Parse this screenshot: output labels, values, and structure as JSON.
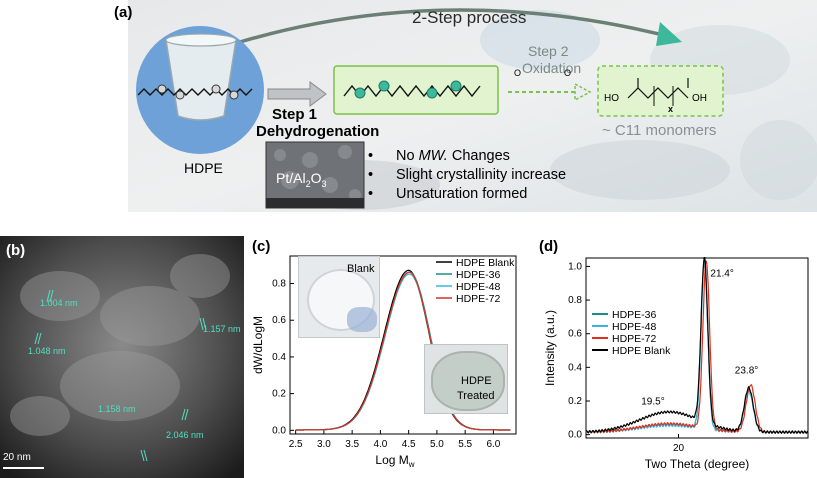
{
  "panel_a": {
    "label": "(a)",
    "process_label": "2-Step process",
    "step2_label": "Step 2",
    "oxidation_label": "Oxidation",
    "step1_label": "Step 1",
    "dehydrogenation_label": "Dehydrogenation",
    "hdpe_label": "HDPE",
    "catalyst_label_prefix": "Pt/Al",
    "catalyst_sub1": "2",
    "catalyst_mid": "O",
    "catalyst_sub2": "3",
    "monomer_label": "~ C11 monomers",
    "molecule_ho": "HO",
    "molecule_oh": "OH",
    "molecule_o1": "O",
    "molecule_o2": "O",
    "molecule_x": "x",
    "bullets": [
      {
        "prefix": "No ",
        "italic": "MW.",
        "suffix": " Changes"
      },
      {
        "text": "Slight crystallinity increase"
      },
      {
        "text": "Unsaturation formed"
      }
    ],
    "colors": {
      "green_accent": "#3cb89a",
      "box_fill": "#e2f3cf",
      "circle_fill": "#6da1d8",
      "dash_green": "#7bc24a"
    }
  },
  "panel_b": {
    "label": "(b)",
    "scale_bar": "20 nm",
    "measurements": [
      "1.004 nm",
      "1.048 nm",
      "1.157 nm",
      "1.158 nm",
      "2.046 nm"
    ],
    "annotation_color": "#4fe0c0"
  },
  "panel_c": {
    "label": "(c)",
    "inset_blank": "Blank",
    "inset_treated_1": "HDPE",
    "inset_treated_2": "Treated"
  },
  "panel_d": {
    "label": "(d)",
    "peak_labels": [
      "21.4°",
      "23.8°",
      "19.5°"
    ]
  },
  "chart_data": [
    {
      "type": "line",
      "panel": "c",
      "xlabel": "Log M",
      "xlabel_sub": "w",
      "ylabel": "dW/dLogM",
      "xlim": [
        2.4,
        6.4
      ],
      "ylim": [
        -0.02,
        0.95
      ],
      "xticks": [
        "2.5",
        "3.0",
        "3.5",
        "4.0",
        "4.5",
        "5.0",
        "5.5",
        "6.0"
      ],
      "yticks": [
        "0.0",
        "0.2",
        "0.4",
        "0.6",
        "0.8"
      ],
      "legend_position": "top-right",
      "series": [
        {
          "name": "HDPE Blank",
          "color": "#000000",
          "shift": 0.0,
          "peak": 0.87,
          "x": [
            2.5,
            3.0,
            3.5,
            4.0,
            4.25,
            4.5,
            4.75,
            5.0,
            5.5,
            6.0,
            6.3
          ],
          "y": [
            0.0,
            0.02,
            0.16,
            0.52,
            0.74,
            0.87,
            0.77,
            0.46,
            0.08,
            0.0,
            0.0
          ]
        },
        {
          "name": "HDPE-36",
          "color": "#1f8f86",
          "shift": 0.02,
          "peak": 0.86,
          "x": [
            2.5,
            3.0,
            3.5,
            4.0,
            4.25,
            4.5,
            4.75,
            5.0,
            5.5,
            6.0,
            6.3
          ],
          "y": [
            0.0,
            0.02,
            0.15,
            0.5,
            0.73,
            0.86,
            0.78,
            0.47,
            0.08,
            0.0,
            0.0
          ]
        },
        {
          "name": "HDPE-48",
          "color": "#37b7e0",
          "shift": 0.015,
          "peak": 0.85,
          "x": [
            2.5,
            3.0,
            3.5,
            4.0,
            4.25,
            4.5,
            4.75,
            5.0,
            5.5,
            6.0,
            6.3
          ],
          "y": [
            0.0,
            0.02,
            0.15,
            0.5,
            0.72,
            0.85,
            0.77,
            0.46,
            0.08,
            0.0,
            0.0
          ]
        },
        {
          "name": "HDPE-72",
          "color": "#d9311e",
          "shift": 0.01,
          "peak": 0.86,
          "x": [
            2.5,
            3.0,
            3.5,
            4.0,
            4.25,
            4.5,
            4.75,
            5.0,
            5.5,
            6.0,
            6.3
          ],
          "y": [
            0.0,
            0.02,
            0.16,
            0.51,
            0.73,
            0.86,
            0.77,
            0.46,
            0.08,
            0.0,
            0.0
          ]
        }
      ]
    },
    {
      "type": "line",
      "panel": "d",
      "xlabel": "Two Theta (degree)",
      "ylabel": "Intensity (a.u.)",
      "xlim": [
        15,
        27
      ],
      "ylim": [
        -0.02,
        1.05
      ],
      "xticks": [
        "20"
      ],
      "yticks": [
        "0.0",
        "0.2",
        "0.4",
        "0.6",
        "0.8",
        "1.0"
      ],
      "legend_position": "middle-left",
      "series": [
        {
          "name": "HDPE-36",
          "color": "#1f8f86",
          "peaks": [
            [
              21.4,
              1.0
            ],
            [
              23.8,
              0.25
            ]
          ],
          "amorphous": 0.045
        },
        {
          "name": "HDPE-48",
          "color": "#37b7e0",
          "peaks": [
            [
              21.4,
              0.99
            ],
            [
              23.8,
              0.24
            ]
          ],
          "amorphous": 0.04
        },
        {
          "name": "HDPE-72",
          "color": "#d9311e",
          "peaks": [
            [
              21.5,
              1.0
            ],
            [
              23.9,
              0.28
            ]
          ],
          "amorphous": 0.05
        },
        {
          "name": "HDPE Blank",
          "color": "#000000",
          "peaks": [
            [
              21.4,
              0.98
            ],
            [
              23.8,
              0.26
            ]
          ],
          "amorphous": 0.12
        }
      ]
    }
  ]
}
